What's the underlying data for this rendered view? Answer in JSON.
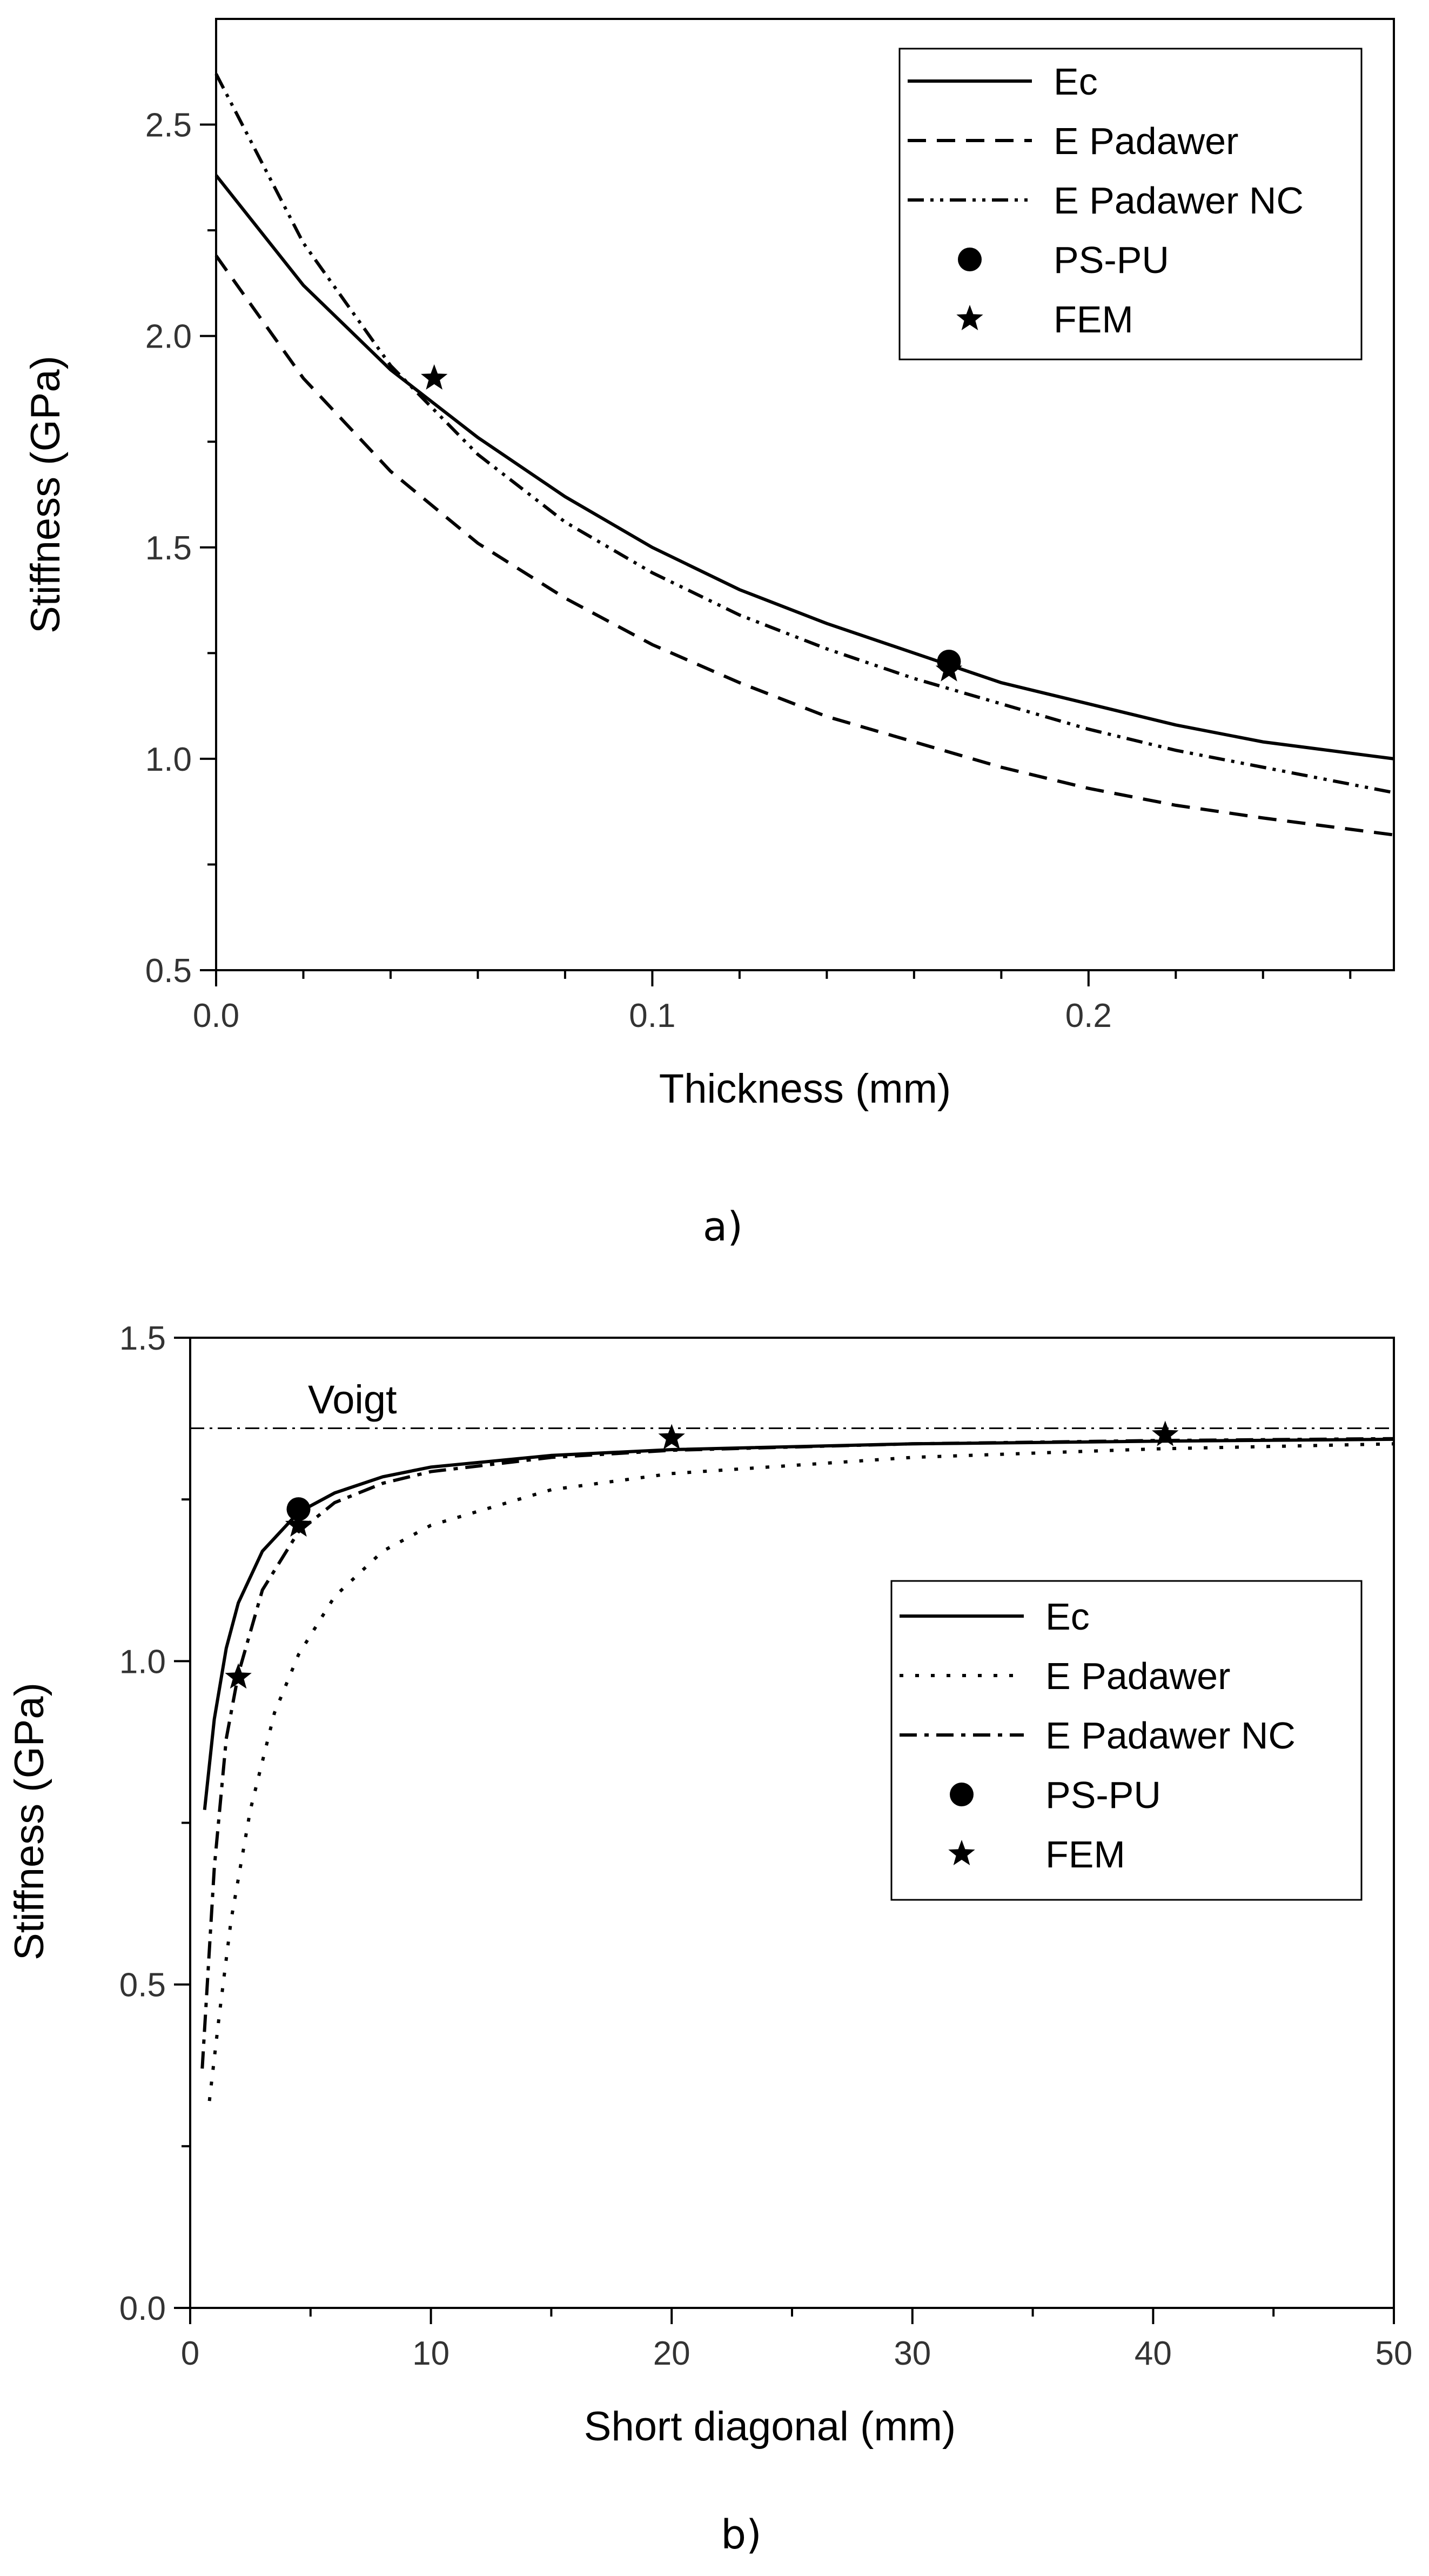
{
  "chart_data": [
    {
      "type": "line",
      "panel": "a)",
      "xlabel": "Thickness (mm)",
      "ylabel": "Stiffness (GPa)",
      "xlim": [
        0,
        0.27
      ],
      "ylim": [
        0.5,
        2.75
      ],
      "x_ticks": [
        "0.0",
        "0.1",
        "0.2"
      ],
      "y_ticks": [
        "0.5",
        "1.0",
        "1.5",
        "2.0",
        "2.5"
      ],
      "legend_position": "top-right",
      "series": [
        {
          "name": "Ec",
          "style": "solid",
          "x": [
            0,
            0.02,
            0.04,
            0.06,
            0.08,
            0.1,
            0.12,
            0.14,
            0.16,
            0.18,
            0.2,
            0.22,
            0.24,
            0.27
          ],
          "values": [
            2.38,
            2.12,
            1.92,
            1.76,
            1.62,
            1.5,
            1.4,
            1.32,
            1.25,
            1.18,
            1.13,
            1.08,
            1.04,
            1.0
          ]
        },
        {
          "name": "E Padawer",
          "style": "dashed",
          "x": [
            0,
            0.02,
            0.04,
            0.06,
            0.08,
            0.1,
            0.12,
            0.14,
            0.16,
            0.18,
            0.2,
            0.22,
            0.24,
            0.27
          ],
          "values": [
            2.19,
            1.9,
            1.68,
            1.51,
            1.38,
            1.27,
            1.18,
            1.1,
            1.04,
            0.98,
            0.93,
            0.89,
            0.86,
            0.82
          ]
        },
        {
          "name": "E Padawer NC",
          "style": "dash-dot-dot",
          "x": [
            0,
            0.02,
            0.04,
            0.06,
            0.08,
            0.1,
            0.12,
            0.14,
            0.16,
            0.18,
            0.2,
            0.22,
            0.24,
            0.27
          ],
          "values": [
            2.62,
            2.22,
            1.93,
            1.72,
            1.56,
            1.44,
            1.34,
            1.26,
            1.19,
            1.13,
            1.07,
            1.02,
            0.98,
            0.92
          ]
        },
        {
          "name": "PS-PU",
          "style": "circle-marker",
          "x": [
            0.168
          ],
          "values": [
            1.23
          ]
        },
        {
          "name": "FEM",
          "style": "star-marker",
          "x": [
            0.05,
            0.168
          ],
          "values": [
            1.9,
            1.21
          ]
        }
      ]
    },
    {
      "type": "line",
      "panel": "b)",
      "xlabel": "Short diagonal (mm)",
      "ylabel": "Stiffness (GPa)",
      "xlim": [
        0,
        50
      ],
      "ylim": [
        0,
        1.5
      ],
      "x_ticks": [
        "0",
        "10",
        "20",
        "30",
        "40",
        "50"
      ],
      "y_ticks": [
        "0.0",
        "0.5",
        "1.0",
        "1.5"
      ],
      "legend_position": "center-right",
      "annotation": {
        "text": "Voigt",
        "value": 1.36
      },
      "series": [
        {
          "name": "Ec",
          "style": "solid",
          "x": [
            0.6,
            1,
            1.5,
            2,
            3,
            4.5,
            6,
            8,
            10,
            15,
            20,
            30,
            40,
            50
          ],
          "values": [
            0.77,
            0.91,
            1.02,
            1.09,
            1.17,
            1.23,
            1.26,
            1.285,
            1.3,
            1.318,
            1.327,
            1.336,
            1.34,
            1.343
          ]
        },
        {
          "name": "E Padawer",
          "style": "dotted",
          "x": [
            0.8,
            1.2,
            1.7,
            2.5,
            3.5,
            4.5,
            6,
            8,
            10,
            15,
            20,
            30,
            40,
            50
          ],
          "values": [
            0.32,
            0.45,
            0.6,
            0.77,
            0.92,
            1.01,
            1.1,
            1.17,
            1.21,
            1.265,
            1.29,
            1.315,
            1.328,
            1.336
          ]
        },
        {
          "name": "E Padawer NC",
          "style": "dash-dot",
          "x": [
            0.5,
            1,
            1.5,
            2,
            3,
            4.5,
            6,
            8,
            10,
            15,
            20,
            30,
            40,
            50
          ],
          "values": [
            0.37,
            0.68,
            0.88,
            0.98,
            1.11,
            1.2,
            1.245,
            1.275,
            1.293,
            1.315,
            1.326,
            1.336,
            1.341,
            1.344
          ]
        },
        {
          "name": "PS-PU",
          "style": "circle-marker",
          "x": [
            4.5
          ],
          "values": [
            1.235
          ]
        },
        {
          "name": "FEM",
          "style": "star-marker",
          "x": [
            2,
            4.5,
            20,
            40.5
          ],
          "values": [
            0.975,
            1.21,
            1.345,
            1.35
          ]
        }
      ]
    }
  ]
}
